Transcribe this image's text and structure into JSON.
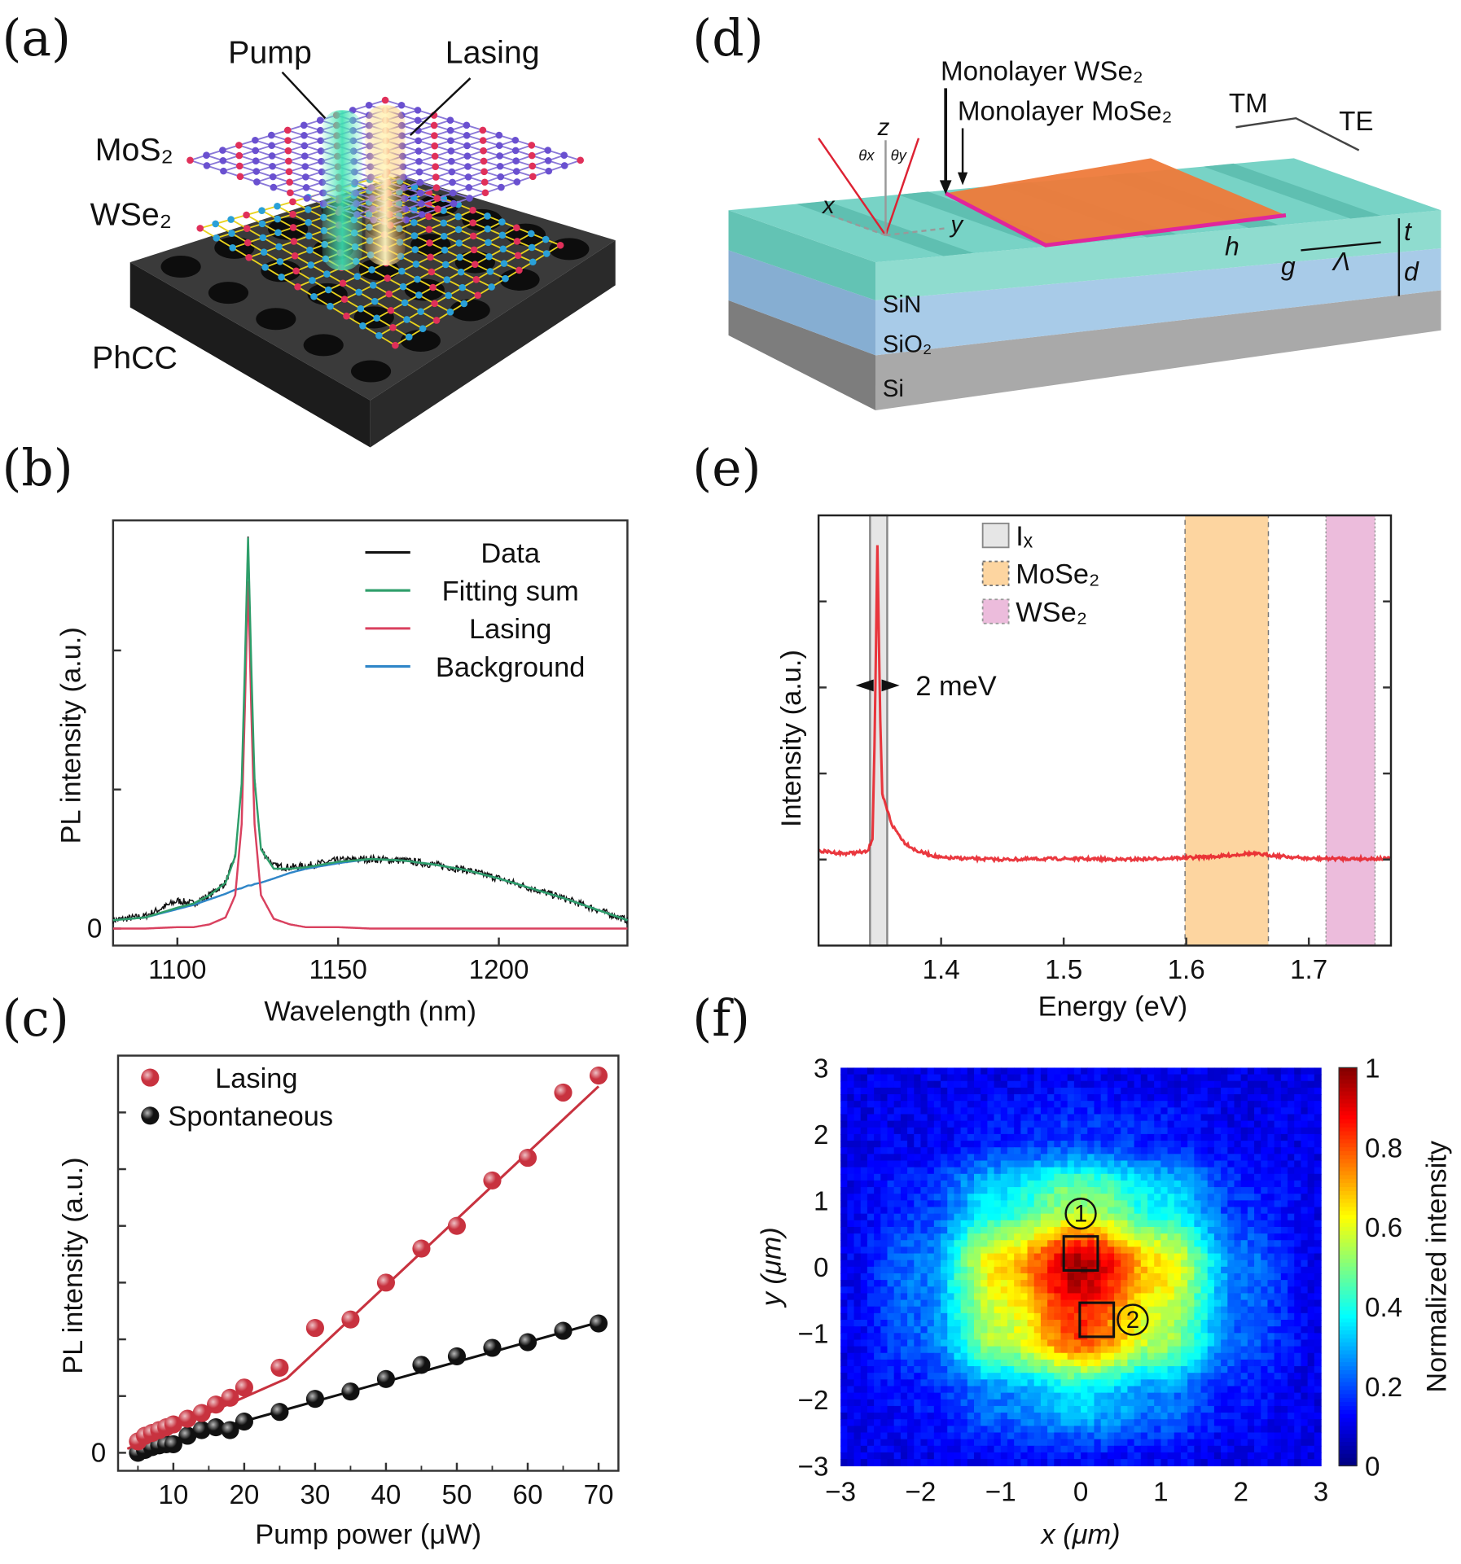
{
  "panels": {
    "a": {
      "label": "(a)",
      "pump": "Pump",
      "lasing": "Lasing",
      "mos2": "MoS₂",
      "wse2": "WSe₂",
      "phcc": "PhCC"
    },
    "b": {
      "label": "(b)"
    },
    "c": {
      "label": "(c)"
    },
    "d": {
      "label": "(d)",
      "wse2": "Monolayer WSe₂",
      "mose2": "Monolayer MoSe₂",
      "tm": "TM",
      "te": "TE",
      "z": "z",
      "x": "x",
      "y": "y",
      "thx": "θx",
      "thy": "θy",
      "h": "h",
      "g": "g",
      "lam": "Λ",
      "t": "t",
      "d": "d",
      "sin": "SiN",
      "sio2": "SiO₂",
      "si": "Si"
    },
    "e": {
      "label": "(e)"
    },
    "f": {
      "label": "(f)"
    }
  },
  "chart_data": [
    {
      "panel": "b",
      "type": "line",
      "xlabel": "Wavelength (nm)",
      "ylabel": "PL intensity (a.u.)",
      "xlim": [
        1080,
        1240
      ],
      "ylim": [
        -0.12,
        2.94
      ],
      "xticks": [
        1100,
        1150,
        1200
      ],
      "yticks": [
        0,
        1,
        2
      ],
      "ytick_labels": [
        "0",
        "",
        ""
      ],
      "legend": "top-right",
      "x": [
        1080,
        1090,
        1100,
        1105,
        1110,
        1115,
        1118,
        1120,
        1121,
        1122,
        1123,
        1124,
        1126,
        1130,
        1135,
        1140,
        1150,
        1160,
        1170,
        1180,
        1190,
        1200,
        1210,
        1220,
        1230,
        1240
      ],
      "series": [
        {
          "name": "Data",
          "color": "#111111",
          "values": [
            0.06,
            0.09,
            0.2,
            0.18,
            0.24,
            0.33,
            0.52,
            1.04,
            1.88,
            2.81,
            1.89,
            1.07,
            0.57,
            0.45,
            0.44,
            0.45,
            0.49,
            0.5,
            0.49,
            0.46,
            0.42,
            0.36,
            0.29,
            0.22,
            0.14,
            0.06
          ]
        },
        {
          "name": "Fitting sum",
          "color": "#2e9e6a",
          "values": [
            0.06,
            0.08,
            0.15,
            0.18,
            0.24,
            0.33,
            0.52,
            1.04,
            1.88,
            2.81,
            1.89,
            1.07,
            0.57,
            0.43,
            0.43,
            0.44,
            0.48,
            0.5,
            0.49,
            0.46,
            0.42,
            0.36,
            0.29,
            0.22,
            0.14,
            0.06
          ]
        },
        {
          "name": "Lasing",
          "color": "#d9415f",
          "values": [
            0,
            0,
            0.01,
            0.01,
            0.03,
            0.08,
            0.24,
            0.75,
            1.58,
            2.5,
            1.58,
            0.75,
            0.24,
            0.07,
            0.03,
            0.01,
            0.01,
            0,
            0,
            0,
            0,
            0,
            0,
            0,
            0,
            0
          ]
        },
        {
          "name": "Background",
          "color": "#2f86c8",
          "values": [
            0.06,
            0.08,
            0.14,
            0.17,
            0.21,
            0.25,
            0.28,
            0.29,
            0.3,
            0.31,
            0.31,
            0.32,
            0.33,
            0.36,
            0.4,
            0.43,
            0.47,
            0.5,
            0.49,
            0.46,
            0.42,
            0.36,
            0.29,
            0.22,
            0.14,
            0.06
          ]
        }
      ]
    },
    {
      "panel": "c",
      "type": "scatter",
      "xlabel": "Pump power (μW)",
      "ylabel": "PL intensity (a.u.)",
      "xlim": [
        2.2,
        72.8
      ],
      "ylim": [
        -0.3,
        7.0
      ],
      "xticks": [
        10,
        20,
        30,
        40,
        50,
        60,
        70
      ],
      "yticks": [
        0,
        1,
        2,
        3,
        4,
        5,
        6
      ],
      "ytick_labels": [
        "0",
        "",
        "",
        "",
        "",
        "",
        ""
      ],
      "legend": "top-left",
      "x": [
        5,
        6,
        7,
        8,
        9,
        10,
        12,
        14,
        16,
        18,
        20,
        25,
        30,
        35,
        40,
        45,
        50,
        55,
        60,
        65,
        70
      ],
      "series": [
        {
          "name": "Lasing",
          "color": "#c8323f",
          "values": [
            0.2,
            0.3,
            0.35,
            0.4,
            0.45,
            0.5,
            0.6,
            0.7,
            0.85,
            0.97,
            1.15,
            1.5,
            2.2,
            2.35,
            3.0,
            3.6,
            4.0,
            4.8,
            5.2,
            6.35,
            6.65
          ],
          "fit": {
            "x": [
              3.5,
              26,
              70
            ],
            "y": [
              0.07,
              1.31,
              6.46
            ]
          }
        },
        {
          "name": "Spontaneous",
          "color": "#111111",
          "values": [
            0.0,
            0.05,
            0.1,
            0.13,
            0.15,
            0.15,
            0.3,
            0.4,
            0.45,
            0.4,
            0.55,
            0.72,
            0.95,
            1.08,
            1.3,
            1.55,
            1.7,
            1.85,
            1.95,
            2.15,
            2.28
          ],
          "fit": {
            "x": [
              4,
              70
            ],
            "y": [
              0.0,
              2.3
            ]
          }
        }
      ]
    },
    {
      "panel": "e",
      "type": "line",
      "xlabel": "Energy (eV)",
      "ylabel": "Intensity (a.u.)",
      "xlim": [
        1.3,
        1.767
      ],
      "ylim": [
        0,
        5
      ],
      "xticks": [
        1.4,
        1.5,
        1.6,
        1.7
      ],
      "yticks": [
        1,
        2,
        3,
        4
      ],
      "legend": "top",
      "x": [
        1.3,
        1.32,
        1.34,
        1.344,
        1.346,
        1.348,
        1.35,
        1.352,
        1.355,
        1.36,
        1.37,
        1.38,
        1.4,
        1.45,
        1.5,
        1.55,
        1.6,
        1.63,
        1.65,
        1.67,
        1.7,
        1.767
      ],
      "series": [
        {
          "color": "#e8222a",
          "values": [
            1.1,
            1.07,
            1.09,
            1.25,
            2.6,
            4.66,
            2.8,
            1.75,
            1.62,
            1.4,
            1.2,
            1.1,
            1.02,
            1.0,
            1.01,
            1.0,
            1.02,
            1.04,
            1.07,
            1.05,
            1.01,
            1.01
          ]
        }
      ],
      "bands": [
        {
          "name": "Iₓ",
          "range": [
            1.342,
            1.356
          ],
          "color": "#e6e6e6",
          "border": "#888888"
        },
        {
          "name": "MoSe₂",
          "range": [
            1.599,
            1.667
          ],
          "color": "#fdd5a0",
          "border": "#777777"
        },
        {
          "name": "WSe₂",
          "range": [
            1.714,
            1.754
          ],
          "color": "#ecbcdc",
          "border": "#999999"
        }
      ],
      "annotation": "2 meV"
    },
    {
      "panel": "f",
      "type": "heatmap",
      "xlabel": "x (μm)",
      "ylabel": "y (μm)",
      "xlim": [
        -3,
        3
      ],
      "ylim": [
        -3,
        3
      ],
      "xticks": [
        -3,
        -2,
        -1,
        0,
        1,
        2,
        3
      ],
      "yticks": [
        -3,
        -2,
        -1,
        0,
        1,
        2,
        3
      ],
      "colorbar": {
        "label": "Normalized intensity",
        "range": [
          0,
          1
        ],
        "ticks": [
          "0",
          "0.2",
          "0.4",
          "0.6",
          "0.8",
          "1"
        ],
        "colormap": "jet"
      },
      "grid_x": [
        -3,
        -2,
        -1,
        0,
        1,
        2,
        3
      ],
      "grid_y": [
        3,
        2,
        1,
        0,
        -1,
        -2,
        -3
      ],
      "values": [
        [
          0.1,
          0.1,
          0.1,
          0.11,
          0.1,
          0.1,
          0.1
        ],
        [
          0.1,
          0.11,
          0.15,
          0.18,
          0.15,
          0.11,
          0.1
        ],
        [
          0.11,
          0.17,
          0.37,
          0.52,
          0.37,
          0.17,
          0.11
        ],
        [
          0.11,
          0.24,
          0.65,
          0.96,
          0.65,
          0.24,
          0.11
        ],
        [
          0.11,
          0.22,
          0.56,
          0.82,
          0.56,
          0.22,
          0.11
        ],
        [
          0.1,
          0.14,
          0.25,
          0.34,
          0.25,
          0.14,
          0.1
        ],
        [
          0.1,
          0.1,
          0.12,
          0.13,
          0.12,
          0.1,
          0.1
        ]
      ],
      "markers": [
        {
          "label": "1",
          "square": [
            0.0,
            0.2
          ],
          "circle": [
            0.0,
            0.8
          ]
        },
        {
          "label": "2",
          "square": [
            0.2,
            -0.8
          ],
          "circle": [
            0.65,
            -0.8
          ]
        }
      ]
    }
  ]
}
